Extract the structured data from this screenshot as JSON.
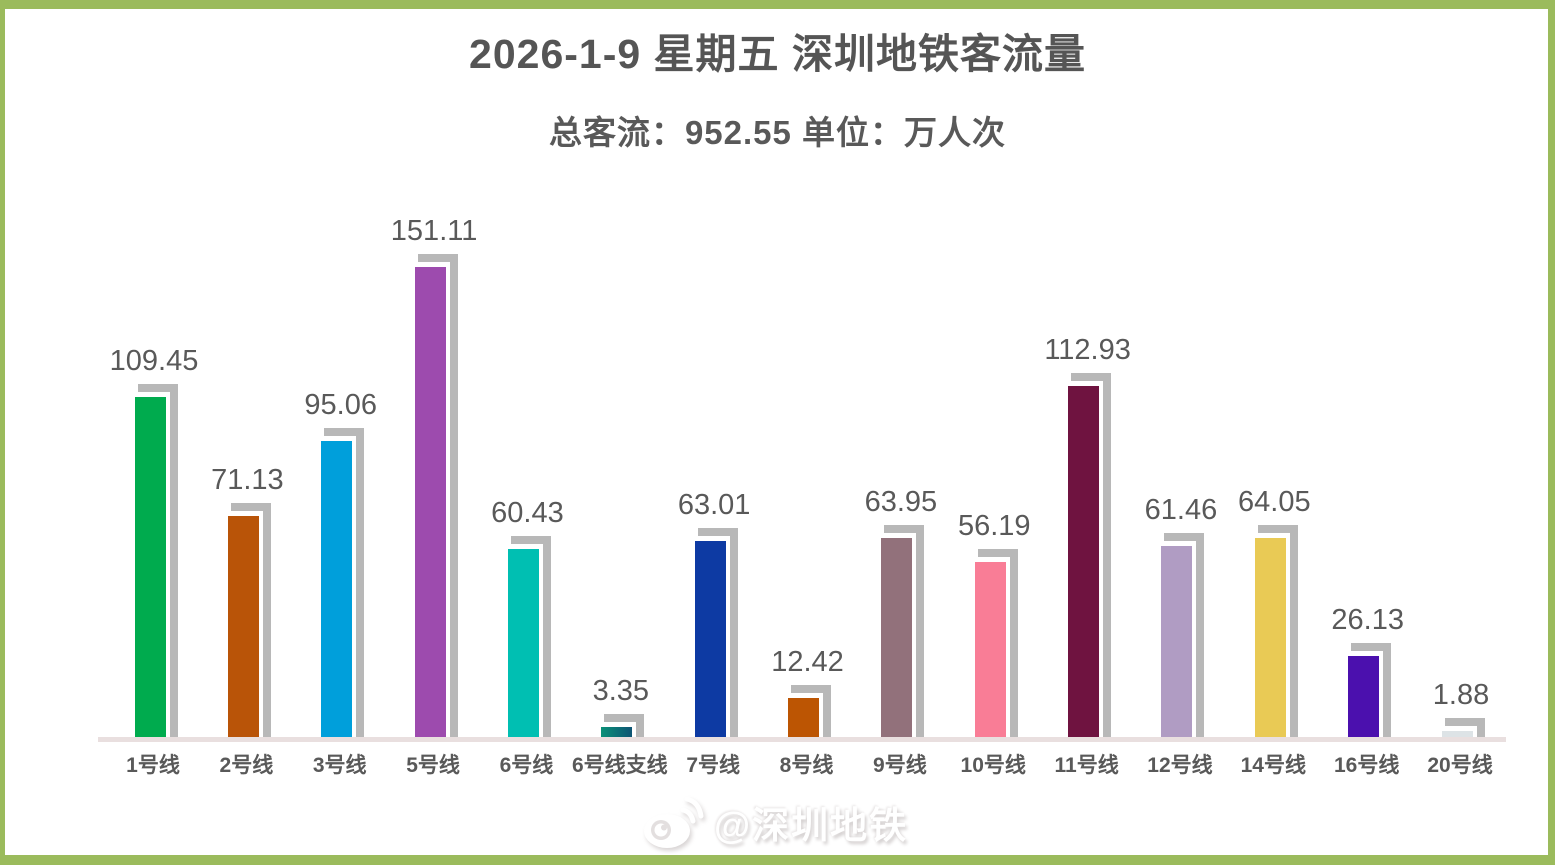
{
  "page": {
    "frame_color": "#9bbb5c",
    "background": "#ffffff"
  },
  "chart_data": {
    "type": "bar",
    "title": "2026-1-9 星期五 深圳地铁客流量",
    "subtitle": "总客流：952.55 单位：万人次",
    "total_label": "总客流",
    "total_value": 952.55,
    "unit_label": "单位",
    "unit": "万人次",
    "categories": [
      "1号线",
      "2号线",
      "3号线",
      "5号线",
      "6号线",
      "6号线支线",
      "7号线",
      "8号线",
      "9号线",
      "10号线",
      "11号线",
      "12号线",
      "14号线",
      "16号线",
      "20号线"
    ],
    "values": [
      109.45,
      71.13,
      95.06,
      151.11,
      60.43,
      3.35,
      63.01,
      12.42,
      63.95,
      56.19,
      112.93,
      61.46,
      64.05,
      26.13,
      1.88
    ],
    "bar_colors": [
      "#00ab4e",
      "#b95408",
      "#009fdb",
      "#9d4bae",
      "#00bfb2",
      "linear-gradient(90deg, #0a9178, #0e5474)",
      "#0d3aa3",
      "#bc5503",
      "#92717b",
      "#f97d96",
      "#6f1340",
      "#b09cc3",
      "#e9ca55",
      "#4b10ae",
      "#dde3e6"
    ],
    "shadow_color": "#b8b8b8",
    "axis_line_color": "#e9dfdf",
    "value_label_color": "#595959",
    "category_label_color": "#595959",
    "grid": false,
    "legend": "none",
    "ylim": [
      0,
      160
    ]
  },
  "watermark": {
    "text": "@深圳地铁",
    "icon": "weibo-icon",
    "color": "#ffffff"
  }
}
